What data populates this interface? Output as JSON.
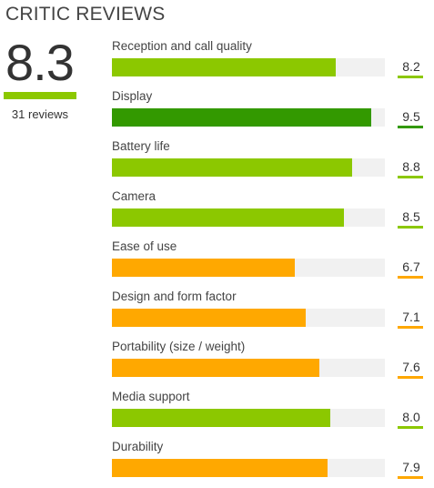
{
  "header": {
    "title": "CRITIC REVIEWS"
  },
  "overall": {
    "score": "8.3",
    "reviews_label": "31 reviews",
    "color": "#8cc800"
  },
  "criteria": [
    {
      "label": "Reception and call quality",
      "value": "8.2",
      "score": 8.2,
      "color": "#8cc800"
    },
    {
      "label": "Display",
      "value": "9.5",
      "score": 9.5,
      "color": "#339900"
    },
    {
      "label": "Battery life",
      "value": "8.8",
      "score": 8.8,
      "color": "#8cc800"
    },
    {
      "label": "Camera",
      "value": "8.5",
      "score": 8.5,
      "color": "#8cc800"
    },
    {
      "label": "Ease of use",
      "value": "6.7",
      "score": 6.7,
      "color": "#ffa800"
    },
    {
      "label": "Design and form factor",
      "value": "7.1",
      "score": 7.1,
      "color": "#ffa800"
    },
    {
      "label": "Portability (size / weight)",
      "value": "7.6",
      "score": 7.6,
      "color": "#ffa800"
    },
    {
      "label": "Media support",
      "value": "8.0",
      "score": 8.0,
      "color": "#8cc800"
    },
    {
      "label": "Durability",
      "value": "7.9",
      "score": 7.9,
      "color": "#ffa800"
    }
  ],
  "scale_max": 10
}
